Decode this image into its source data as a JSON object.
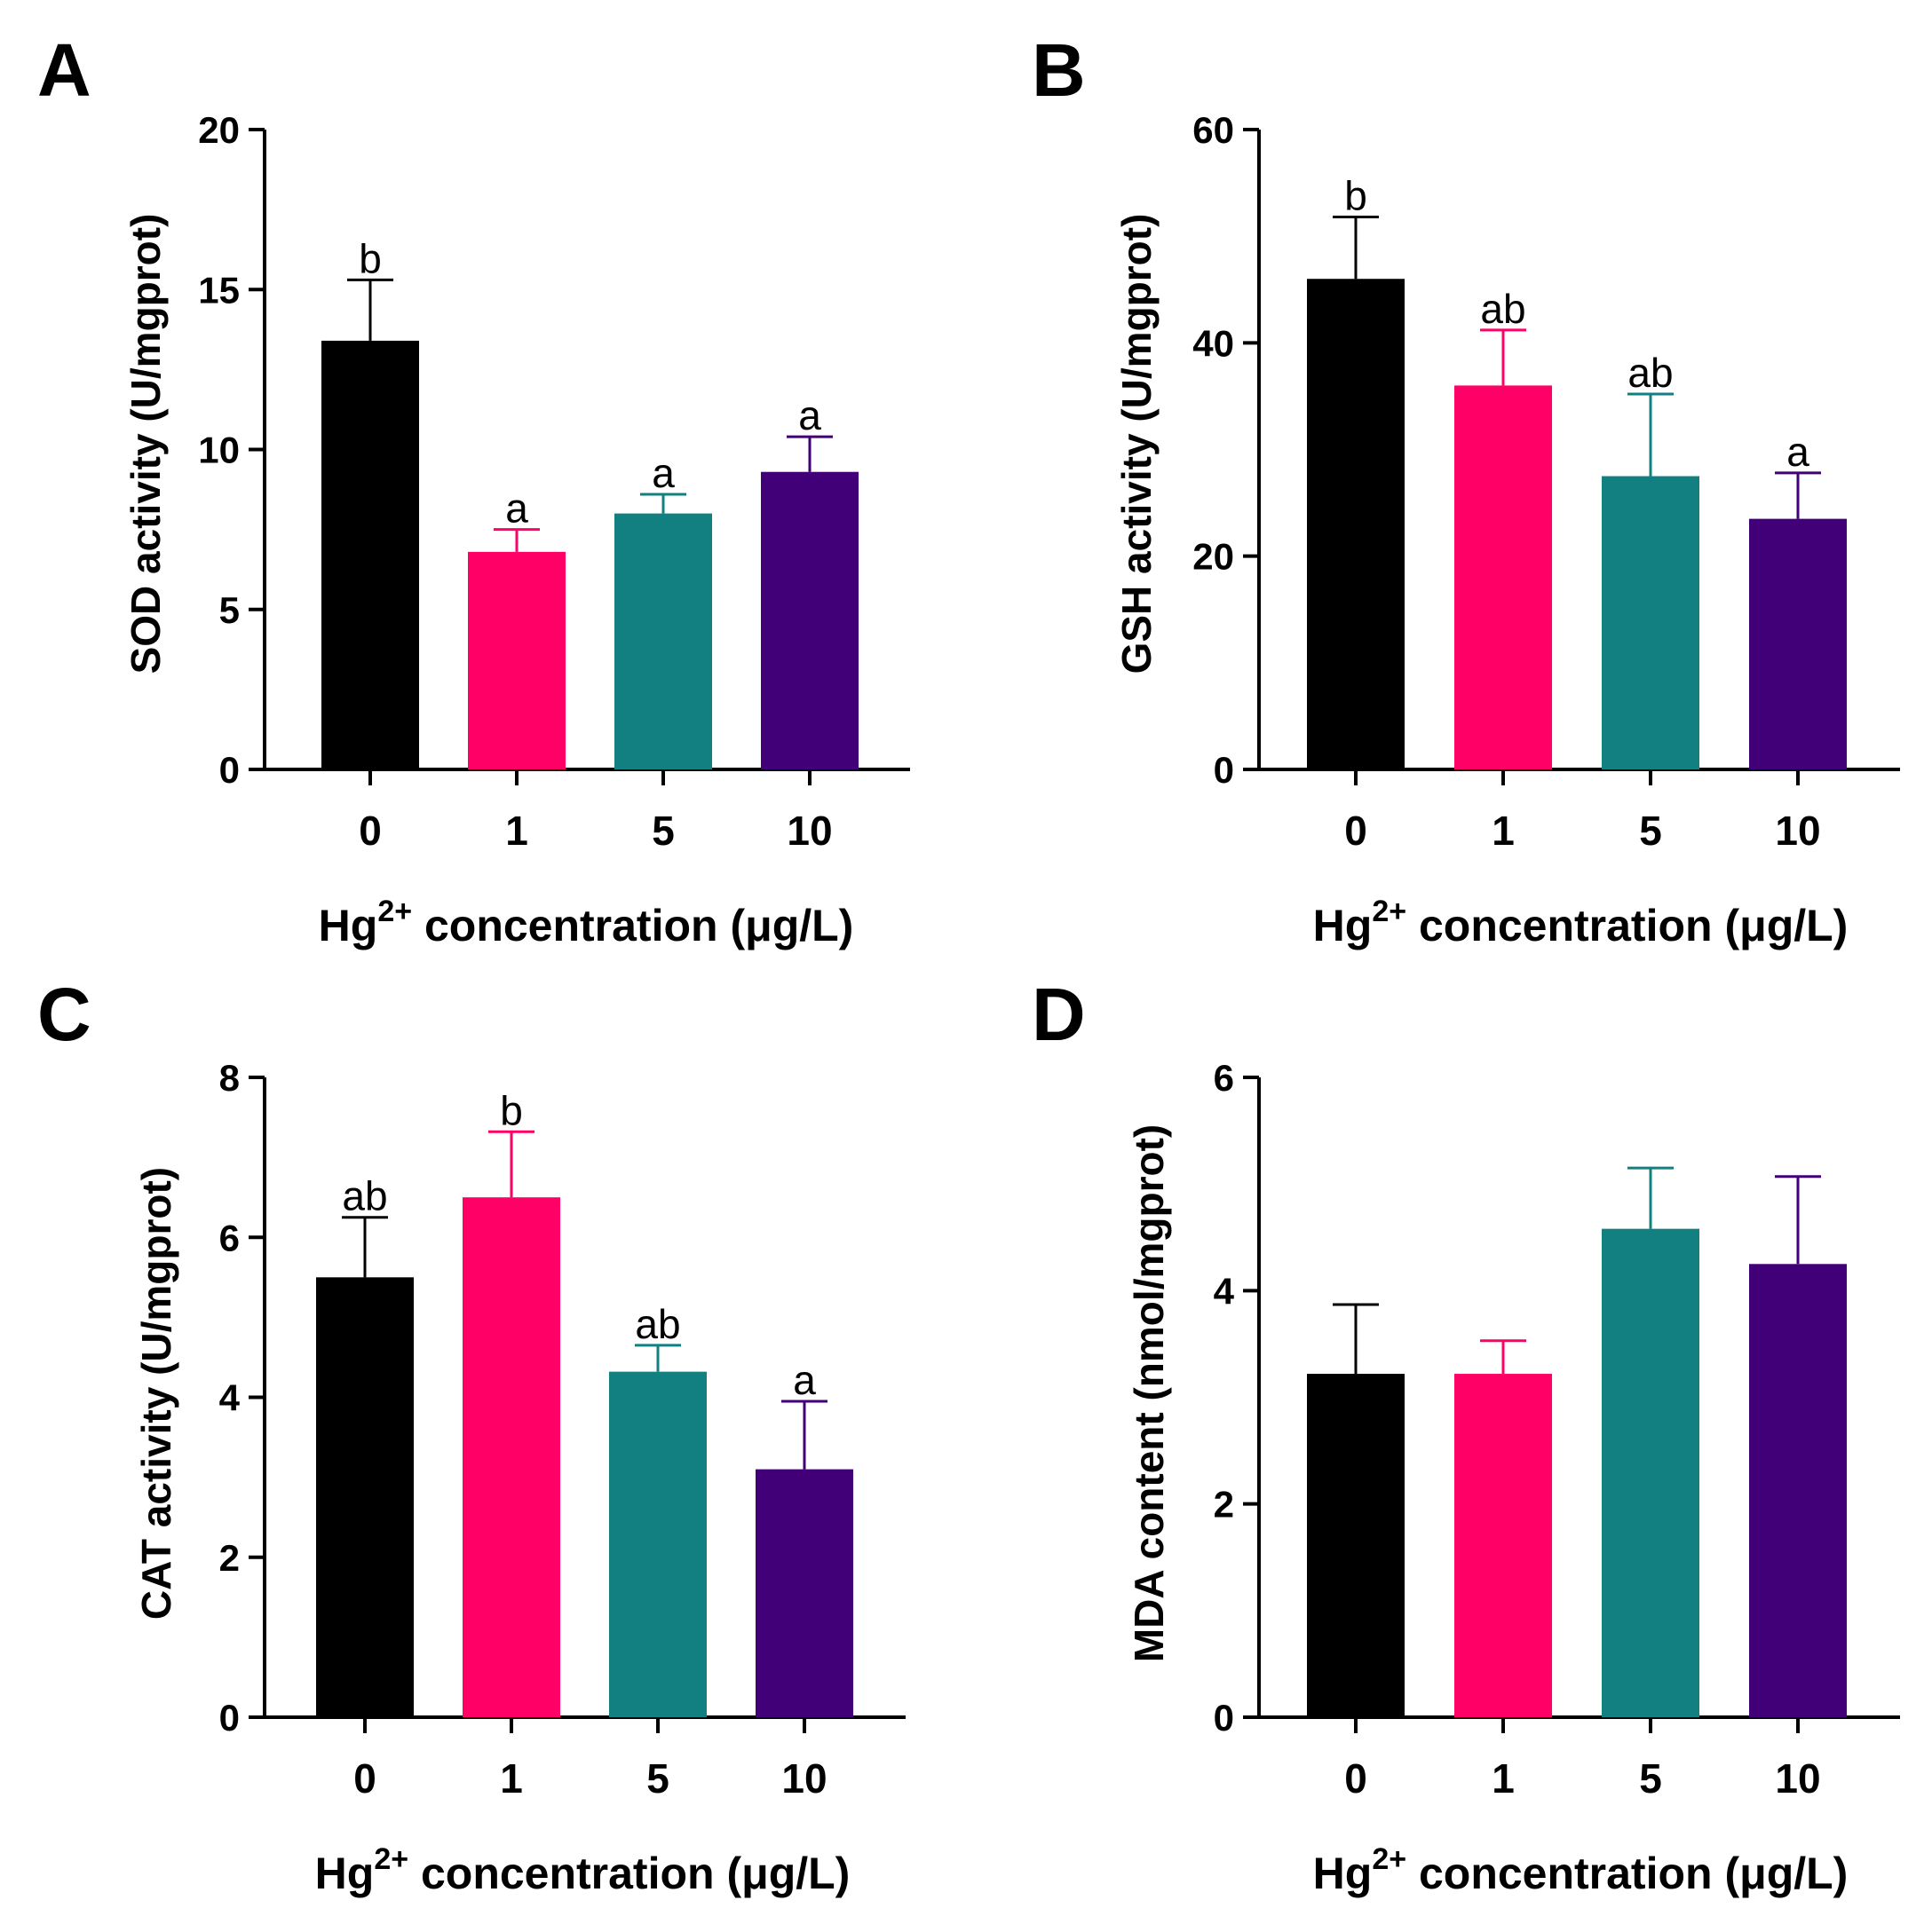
{
  "figure": {
    "x_axis_label": "Hg²⁺ concentration (μg/L)",
    "x_axis_label_parts": {
      "prefix": "Hg",
      "superscript": "2+",
      "suffix": " concentration (μg/L)"
    }
  },
  "chart_data": [
    {
      "panel": "A",
      "type": "bar",
      "categories": [
        "0",
        "1",
        "5",
        "10"
      ],
      "values": [
        13.4,
        6.8,
        8.0,
        9.3
      ],
      "error_upper": [
        15.3,
        7.5,
        8.6,
        10.4
      ],
      "significance": [
        "b",
        "a",
        "a",
        "a"
      ],
      "colors": [
        "#000000",
        "#ff0066",
        "#128080",
        "#420078"
      ],
      "ylabel": "SOD activity (U/mgprot)",
      "xlabel": "Hg²⁺ concentration (μg/L)",
      "ylim": [
        0,
        20
      ],
      "yticks": [
        0,
        5,
        10,
        15,
        20
      ],
      "ytick_labels": [
        "0",
        "5",
        "10",
        "15",
        "20"
      ]
    },
    {
      "panel": "B",
      "type": "bar",
      "categories": [
        "0",
        "1",
        "5",
        "10"
      ],
      "values": [
        46.0,
        36.0,
        27.5,
        23.5
      ],
      "error_upper": [
        51.8,
        41.2,
        35.2,
        27.8
      ],
      "significance": [
        "b",
        "ab",
        "ab",
        "a"
      ],
      "colors": [
        "#000000",
        "#ff0066",
        "#128080",
        "#420078"
      ],
      "ylabel": "GSH activity (U/mgprot)",
      "xlabel": "Hg²⁺ concentration (μg/L)",
      "ylim": [
        0,
        60
      ],
      "yticks": [
        0,
        20,
        40,
        60
      ],
      "ytick_labels": [
        "0",
        "20",
        "40",
        "60"
      ]
    },
    {
      "panel": "C",
      "type": "bar",
      "categories": [
        "0",
        "1",
        "5",
        "10"
      ],
      "values": [
        5.5,
        6.5,
        4.32,
        3.1
      ],
      "error_upper": [
        6.25,
        7.32,
        4.65,
        3.95
      ],
      "significance": [
        "ab",
        "b",
        "ab",
        "a"
      ],
      "colors": [
        "#000000",
        "#ff0066",
        "#128080",
        "#420078"
      ],
      "ylabel": "CAT activity (U/mgprot)",
      "xlabel": "Hg²⁺ concentration (μg/L)",
      "ylim": [
        0,
        8
      ],
      "yticks": [
        0,
        2,
        4,
        6,
        8
      ],
      "ytick_labels": [
        "0",
        "2",
        "4",
        "6",
        "8"
      ]
    },
    {
      "panel": "D",
      "type": "bar",
      "categories": [
        "0",
        "1",
        "5",
        "10"
      ],
      "values": [
        3.22,
        3.22,
        4.58,
        4.25
      ],
      "error_upper": [
        3.87,
        3.53,
        5.15,
        5.07
      ],
      "significance": [
        "",
        "",
        "",
        ""
      ],
      "colors": [
        "#000000",
        "#ff0066",
        "#128080",
        "#420078"
      ],
      "ylabel": "MDA content (nmol/mgprot)",
      "xlabel": "Hg²⁺ concentration (μg/L)",
      "ylim": [
        0,
        6
      ],
      "yticks": [
        0,
        2,
        4,
        6
      ],
      "ytick_labels": [
        "0",
        "2",
        "4",
        "6"
      ]
    }
  ]
}
